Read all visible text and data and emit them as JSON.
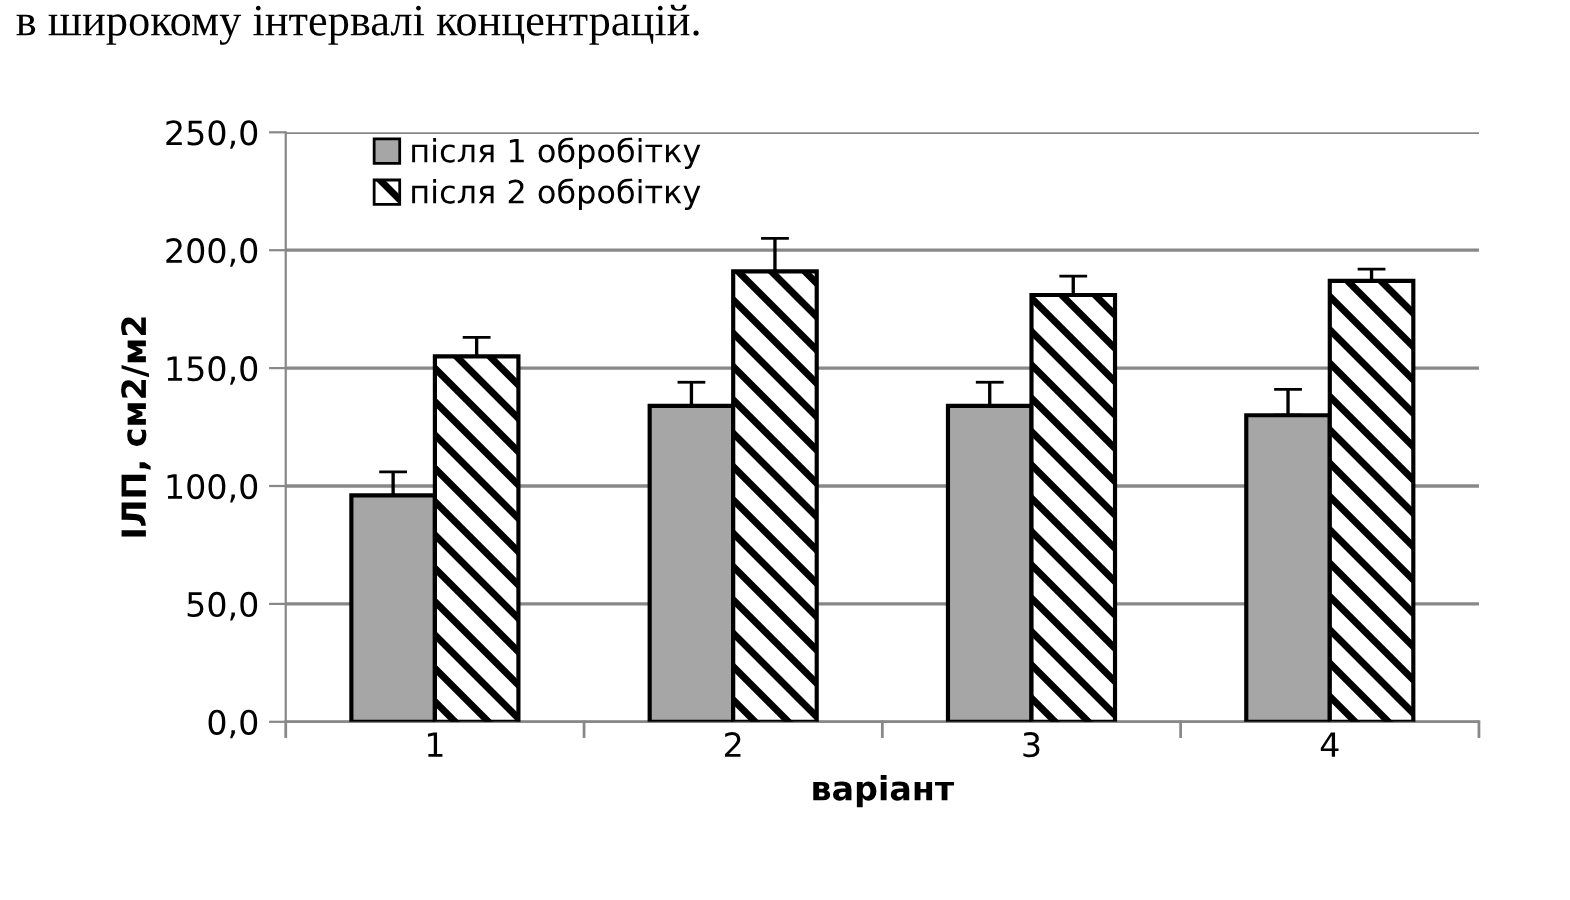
{
  "chart_data": {
    "type": "bar",
    "xlabel": "варіант",
    "ylabel": "ІЛП, см2/м2",
    "annotations": [
      "в широкому інтервалі концентрацій."
    ],
    "categories": [
      "1",
      "2",
      "3",
      "4"
    ],
    "series": [
      {
        "name": "після 1 обробітку",
        "color": "#a6a6a6",
        "values": [
          96,
          134,
          134,
          130
        ],
        "errors": [
          10,
          10,
          10,
          11
        ]
      },
      {
        "name": "після 2 обробітку",
        "color": "#000000",
        "values": [
          155,
          191,
          181,
          187
        ],
        "errors": [
          8,
          14,
          8,
          5
        ]
      }
    ],
    "ylim": [
      0,
      250
    ],
    "yticks": [
      {
        "value": 0,
        "label": "0,0"
      },
      {
        "value": 50,
        "label": "50,0"
      },
      {
        "value": 100,
        "label": "100,0"
      },
      {
        "value": 150,
        "label": "150,0"
      },
      {
        "value": 200,
        "label": "200,0"
      },
      {
        "value": 250,
        "label": "250,0"
      }
    ],
    "grid": "y",
    "legend": "top left"
  }
}
